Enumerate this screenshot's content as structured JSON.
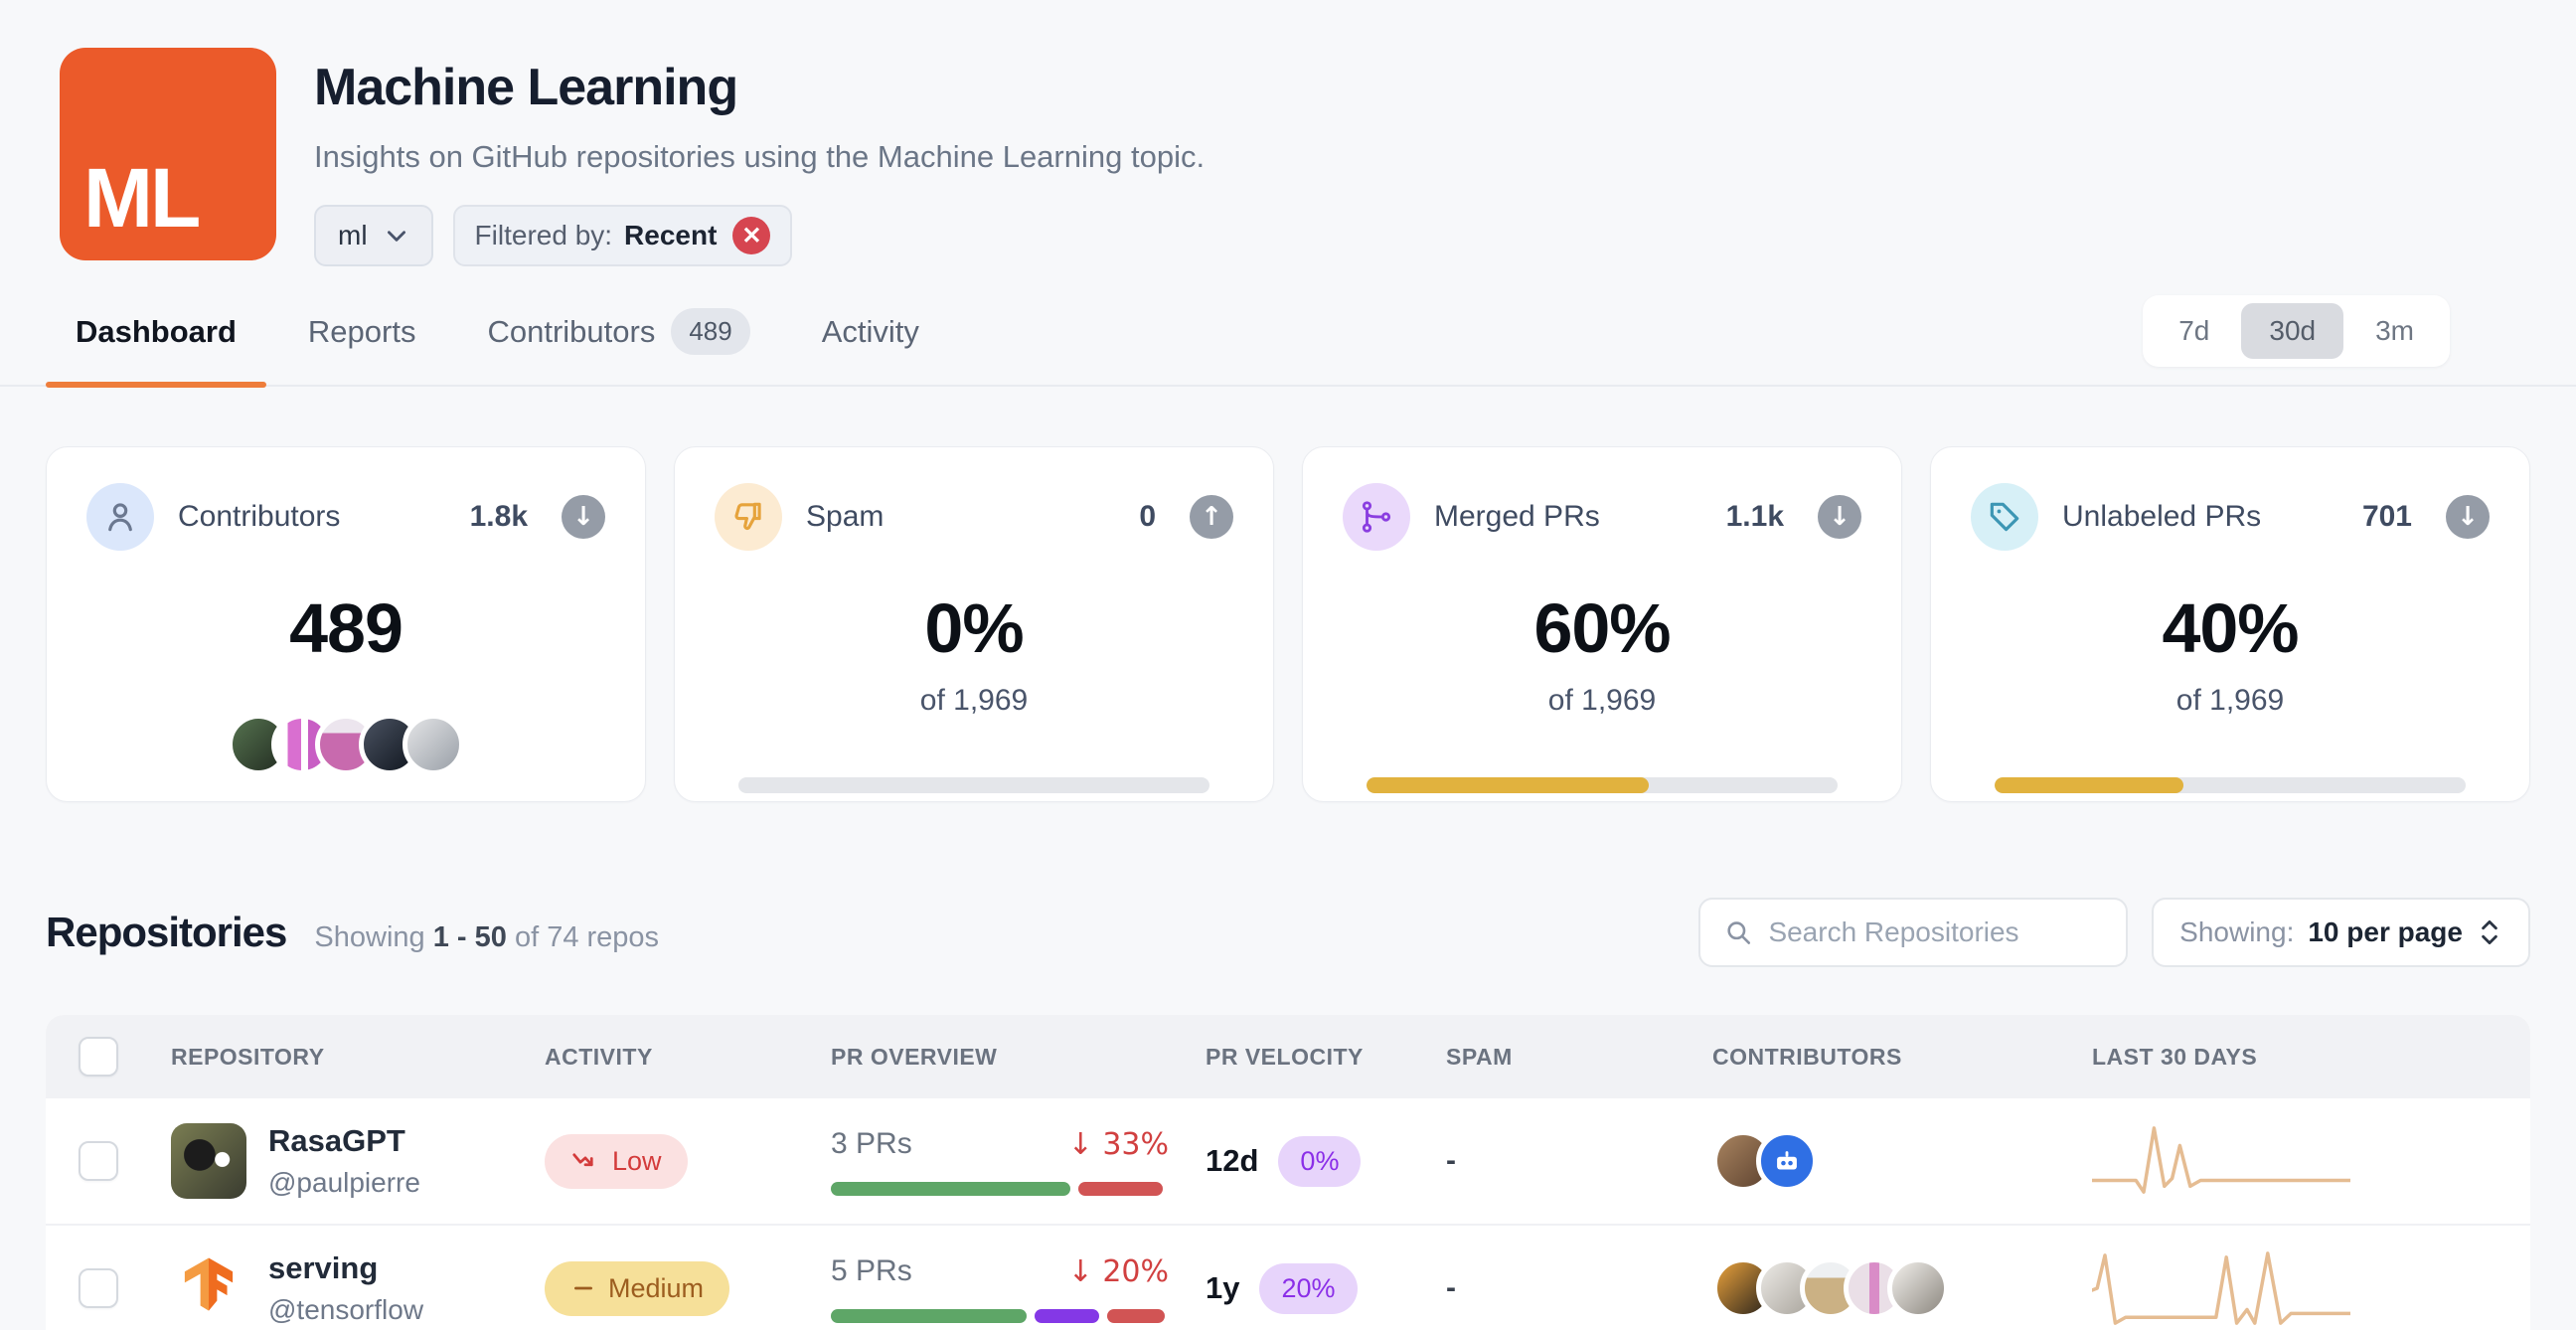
{
  "colors": {
    "accent_orange": "#eb5a2a",
    "tab_underline": "#ee7d3b",
    "progress_gold": "#e1b23e",
    "sparkline": "#e5bc92",
    "segment_green": "#5ea667",
    "segment_purple": "#8438e6",
    "segment_red": "#d15454"
  },
  "header": {
    "logo_text": "ML",
    "title": "Machine Learning",
    "subtitle": "Insights on GitHub repositories using the Machine Learning topic.",
    "topic_dropdown_value": "ml",
    "filter_prefix": "Filtered by:",
    "filter_value": "Recent",
    "filter_close": "✕"
  },
  "tabs": {
    "items": [
      {
        "label": "Dashboard"
      },
      {
        "label": "Reports"
      },
      {
        "label": "Contributors",
        "badge": "489"
      },
      {
        "label": "Activity"
      }
    ]
  },
  "time_range": {
    "options": [
      "7d",
      "30d",
      "3m"
    ],
    "selected": "30d"
  },
  "cards": [
    {
      "label": "Contributors",
      "metric": "1.8k",
      "trend_arrow": "↓",
      "value": "489",
      "avatars": [
        {
          "bg": "linear-gradient(135deg,#55724f,#232d22)"
        },
        {
          "bg": "linear-gradient(90deg,#fff 0 22%,#d96fd0 22% 48%,#fff 48% 62%,#c85ec4 62% 100%)"
        },
        {
          "bg": "linear-gradient(180deg,#ece5ee 0 28%,#c86aae 28% 100%)"
        },
        {
          "bg": "linear-gradient(135deg,#4a5261,#10161f)"
        },
        {
          "bg": "linear-gradient(135deg,#e3e4e6,#9aa0a8)"
        }
      ]
    },
    {
      "label": "Spam",
      "metric": "0",
      "trend_arrow": "↑",
      "value": "0%",
      "subtext": "of 1,969",
      "progress": 0
    },
    {
      "label": "Merged PRs",
      "metric": "1.1k",
      "trend_arrow": "↓",
      "value": "60%",
      "subtext": "of 1,969",
      "progress": 60
    },
    {
      "label": "Unlabeled PRs",
      "metric": "701",
      "trend_arrow": "↓",
      "value": "40%",
      "subtext": "of 1,969",
      "progress": 40
    }
  ],
  "repositories": {
    "heading": "Repositories",
    "showing_prefix": "Showing",
    "showing_range": "1 - 50",
    "showing_suffix": "of 74 repos",
    "search_placeholder": "Search Repositories",
    "per_page_label": "Showing:",
    "per_page_value": "10 per page"
  },
  "table": {
    "columns": [
      "REPOSITORY",
      "ACTIVITY",
      "PR OVERVIEW",
      "PR VELOCITY",
      "SPAM",
      "CONTRIBUTORS",
      "LAST 30 DAYS"
    ],
    "rows": [
      {
        "name": "RasaGPT",
        "owner": "@paulpierre",
        "activity": {
          "label": "Low"
        },
        "overview": {
          "count": "3 PRs",
          "change": "↓ 33%",
          "segments": [
            {
              "color": "#5ea667",
              "width": 71
            },
            {
              "color": "#d15454",
              "width": 25
            }
          ]
        },
        "velocity": {
          "time": "12d",
          "badge": "0%"
        },
        "spam": "-",
        "contributors": [
          {
            "bg": "linear-gradient(135deg,#a8835f,#5e4330)"
          },
          {
            "type": "bot",
            "bg": "#2f6fe4"
          }
        ],
        "sparkline": [
          [
            0,
            60
          ],
          [
            17,
            60
          ],
          [
            20,
            72
          ],
          [
            24,
            6
          ],
          [
            28,
            66
          ],
          [
            31,
            58
          ],
          [
            34,
            24
          ],
          [
            38,
            66
          ],
          [
            42,
            60
          ],
          [
            100,
            60
          ]
        ]
      },
      {
        "name": "serving",
        "owner": "@tensorflow",
        "activity": {
          "label": "Medium"
        },
        "overview": {
          "count": "5 PRs",
          "change": "↓ 20%",
          "segments": [
            {
              "color": "#5ea667",
              "width": 58
            },
            {
              "color": "#8438e6",
              "width": 19
            },
            {
              "color": "#d15454",
              "width": 17
            }
          ]
        },
        "velocity": {
          "time": "1y",
          "badge": "20%"
        },
        "spam": "-",
        "contributors": [
          {
            "bg": "linear-gradient(135deg,#e8a13c,#2b241c)"
          },
          {
            "bg": "linear-gradient(135deg,#eceae6,#a9a49c)"
          },
          {
            "bg": "linear-gradient(180deg,#eef0f2 0 30%,#cbb184 30% 100%)"
          },
          {
            "bg": "linear-gradient(90deg,#eadfe7 0 40%,#d98cc7 40% 60%,#eadfe7 60% 100%)"
          },
          {
            "bg": "linear-gradient(135deg,#f2f0ec,#8d8880)"
          }
        ],
        "sparkline": [
          [
            0,
            42
          ],
          [
            2,
            40
          ],
          [
            5,
            6
          ],
          [
            9,
            76
          ],
          [
            13,
            70
          ],
          [
            48,
            70
          ],
          [
            52,
            8
          ],
          [
            56,
            76
          ],
          [
            60,
            62
          ],
          [
            63,
            76
          ],
          [
            68,
            4
          ],
          [
            73,
            76
          ],
          [
            77,
            66
          ],
          [
            100,
            66
          ]
        ]
      }
    ]
  }
}
